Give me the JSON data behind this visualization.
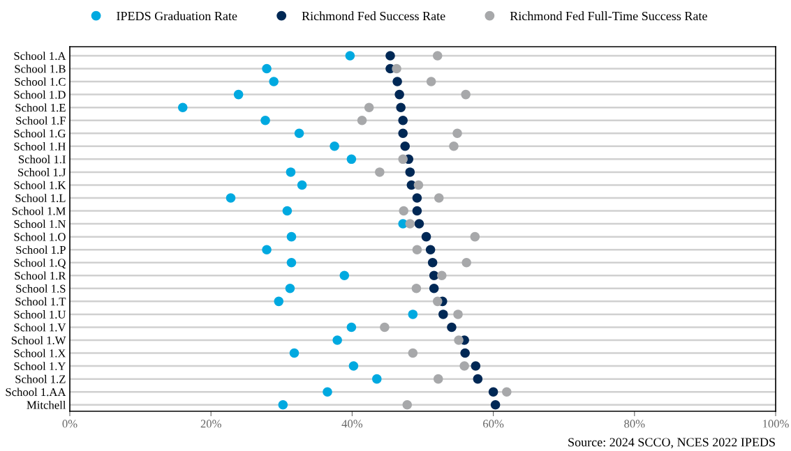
{
  "chart_data": {
    "type": "scatter",
    "orientation": "horizontal",
    "categories": [
      "School 1.A",
      "School 1.B",
      "School 1.C",
      "School 1.D",
      "School 1.E",
      "School 1.F",
      "School 1.G",
      "School 1.H",
      "School 1.I",
      "School 1.J",
      "School 1.K",
      "School 1.L",
      "School 1.M",
      "School 1.N",
      "School 1.O",
      "School 1.P",
      "School 1.Q",
      "School 1.R",
      "School 1.S",
      "School 1.T",
      "School 1.U",
      "School 1.V",
      "School 1.W",
      "School 1.X",
      "School 1.Y",
      "School 1.Z",
      "School 1.AA",
      "Mitchell"
    ],
    "series": [
      {
        "name": "IPEDS Graduation Rate",
        "color": "#00a9e0",
        "values": [
          39.7,
          27.9,
          28.9,
          23.9,
          16.0,
          27.7,
          32.5,
          37.5,
          39.9,
          31.3,
          32.9,
          22.8,
          30.8,
          47.2,
          31.4,
          27.9,
          31.4,
          38.9,
          31.2,
          29.6,
          48.6,
          39.9,
          37.9,
          31.8,
          40.2,
          43.5,
          36.5,
          30.2
        ]
      },
      {
        "name": "Richmond Fed Success Rate",
        "color": "#002855",
        "values": [
          45.4,
          45.4,
          46.4,
          46.7,
          46.9,
          47.2,
          47.2,
          47.5,
          48.0,
          48.2,
          48.4,
          49.2,
          49.2,
          49.5,
          50.5,
          51.1,
          51.4,
          51.6,
          51.6,
          52.8,
          52.9,
          54.1,
          55.9,
          56.0,
          57.5,
          57.8,
          60.0,
          60.3
        ]
      },
      {
        "name": "Richmond Fed Full-Time Success Rate",
        "color": "#a7a8aa",
        "values": [
          52.1,
          46.3,
          51.2,
          56.1,
          42.4,
          41.4,
          54.9,
          54.4,
          47.2,
          43.9,
          49.4,
          52.3,
          47.3,
          48.2,
          57.4,
          49.2,
          56.2,
          52.7,
          49.1,
          52.1,
          55.0,
          44.6,
          55.1,
          48.6,
          55.9,
          52.2,
          61.9,
          47.8
        ]
      }
    ],
    "xlim": [
      0,
      100
    ],
    "xticks": [
      {
        "value": 0,
        "label": "0%"
      },
      {
        "value": 20,
        "label": "20%"
      },
      {
        "value": 40,
        "label": "40%"
      },
      {
        "value": 60,
        "label": "60%"
      },
      {
        "value": 80,
        "label": "80%"
      },
      {
        "value": 100,
        "label": "100%"
      }
    ],
    "grid": "y",
    "legend": "top",
    "marker": "circle",
    "annotations": [
      "Source: 2024 SCCO, NCES 2022 IPEDS"
    ]
  }
}
